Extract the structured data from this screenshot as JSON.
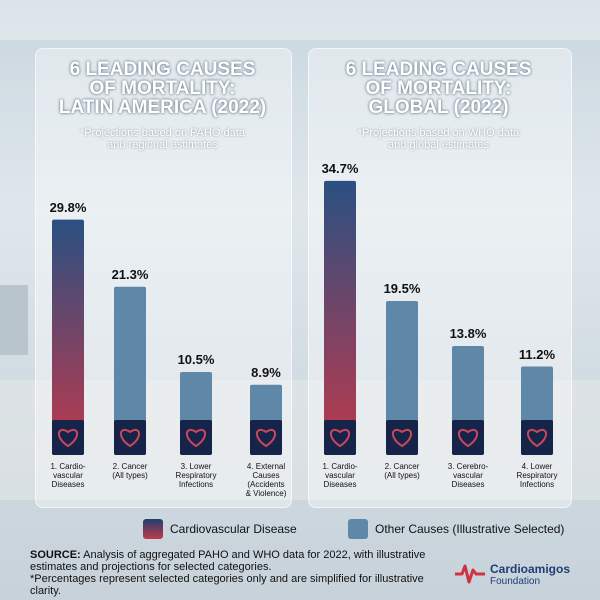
{
  "chart_data": [
    {
      "type": "bar",
      "title": "6 LEADING CAUSES\nOF MORTALITY:\nLATIN AMERICA (2022)",
      "subtitle": "*Projections based on PAHO data\nand regional estimates",
      "categories": [
        "1. Cardio-\nvascular\nDiseases",
        "2. Cancer\n(All types)",
        "3. Lower\nRespiratory\nInfections",
        "4. External\nCauses\n(Accidents\n& Violence)"
      ],
      "values": [
        29.8,
        21.3,
        10.5,
        8.9
      ],
      "value_labels": [
        "29.8%",
        "21.3%",
        "10.5%",
        "8.9%"
      ],
      "colors": [
        "#c0394b",
        "#5f87a7",
        "#5f87a7",
        "#5f87a7"
      ]
    },
    {
      "type": "bar",
      "title": "6 LEADING CAUSES\nOF MORTALITY:\nGLOBAL (2022)",
      "subtitle": "*Projections based on WHO data\nand global estimates",
      "categories": [
        "1. Cardio-\nvascular\nDiseases",
        "2. Cancer\n(All types)",
        "3. Cerebro-\nvascular\nDiseases",
        "4. Lower\nRespiratory\nInfections"
      ],
      "values": [
        34.7,
        19.5,
        13.8,
        11.2
      ],
      "value_labels": [
        "34.7%",
        "19.5%",
        "13.8%",
        "11.2%"
      ],
      "colors": [
        "#c0394b",
        "#5f87a7",
        "#5f87a7",
        "#5f87a7"
      ]
    }
  ],
  "legend": [
    {
      "name": "Cardiovascular Disease",
      "color": "#c0394b"
    },
    {
      "name": "Other Causes (Illustrative Selected)",
      "color": "#5f87a7"
    }
  ],
  "source": {
    "label": "SOURCE:",
    "text": " Analysis of aggregated PAHO and WHO data for 2022, with illustrative estimates and projections for selected categories.",
    "note": "*Percentages represent selected categories only and are simplified for illustrative clarity."
  },
  "logo": {
    "brand": "Cardioamigos",
    "sub": "Foundation"
  }
}
